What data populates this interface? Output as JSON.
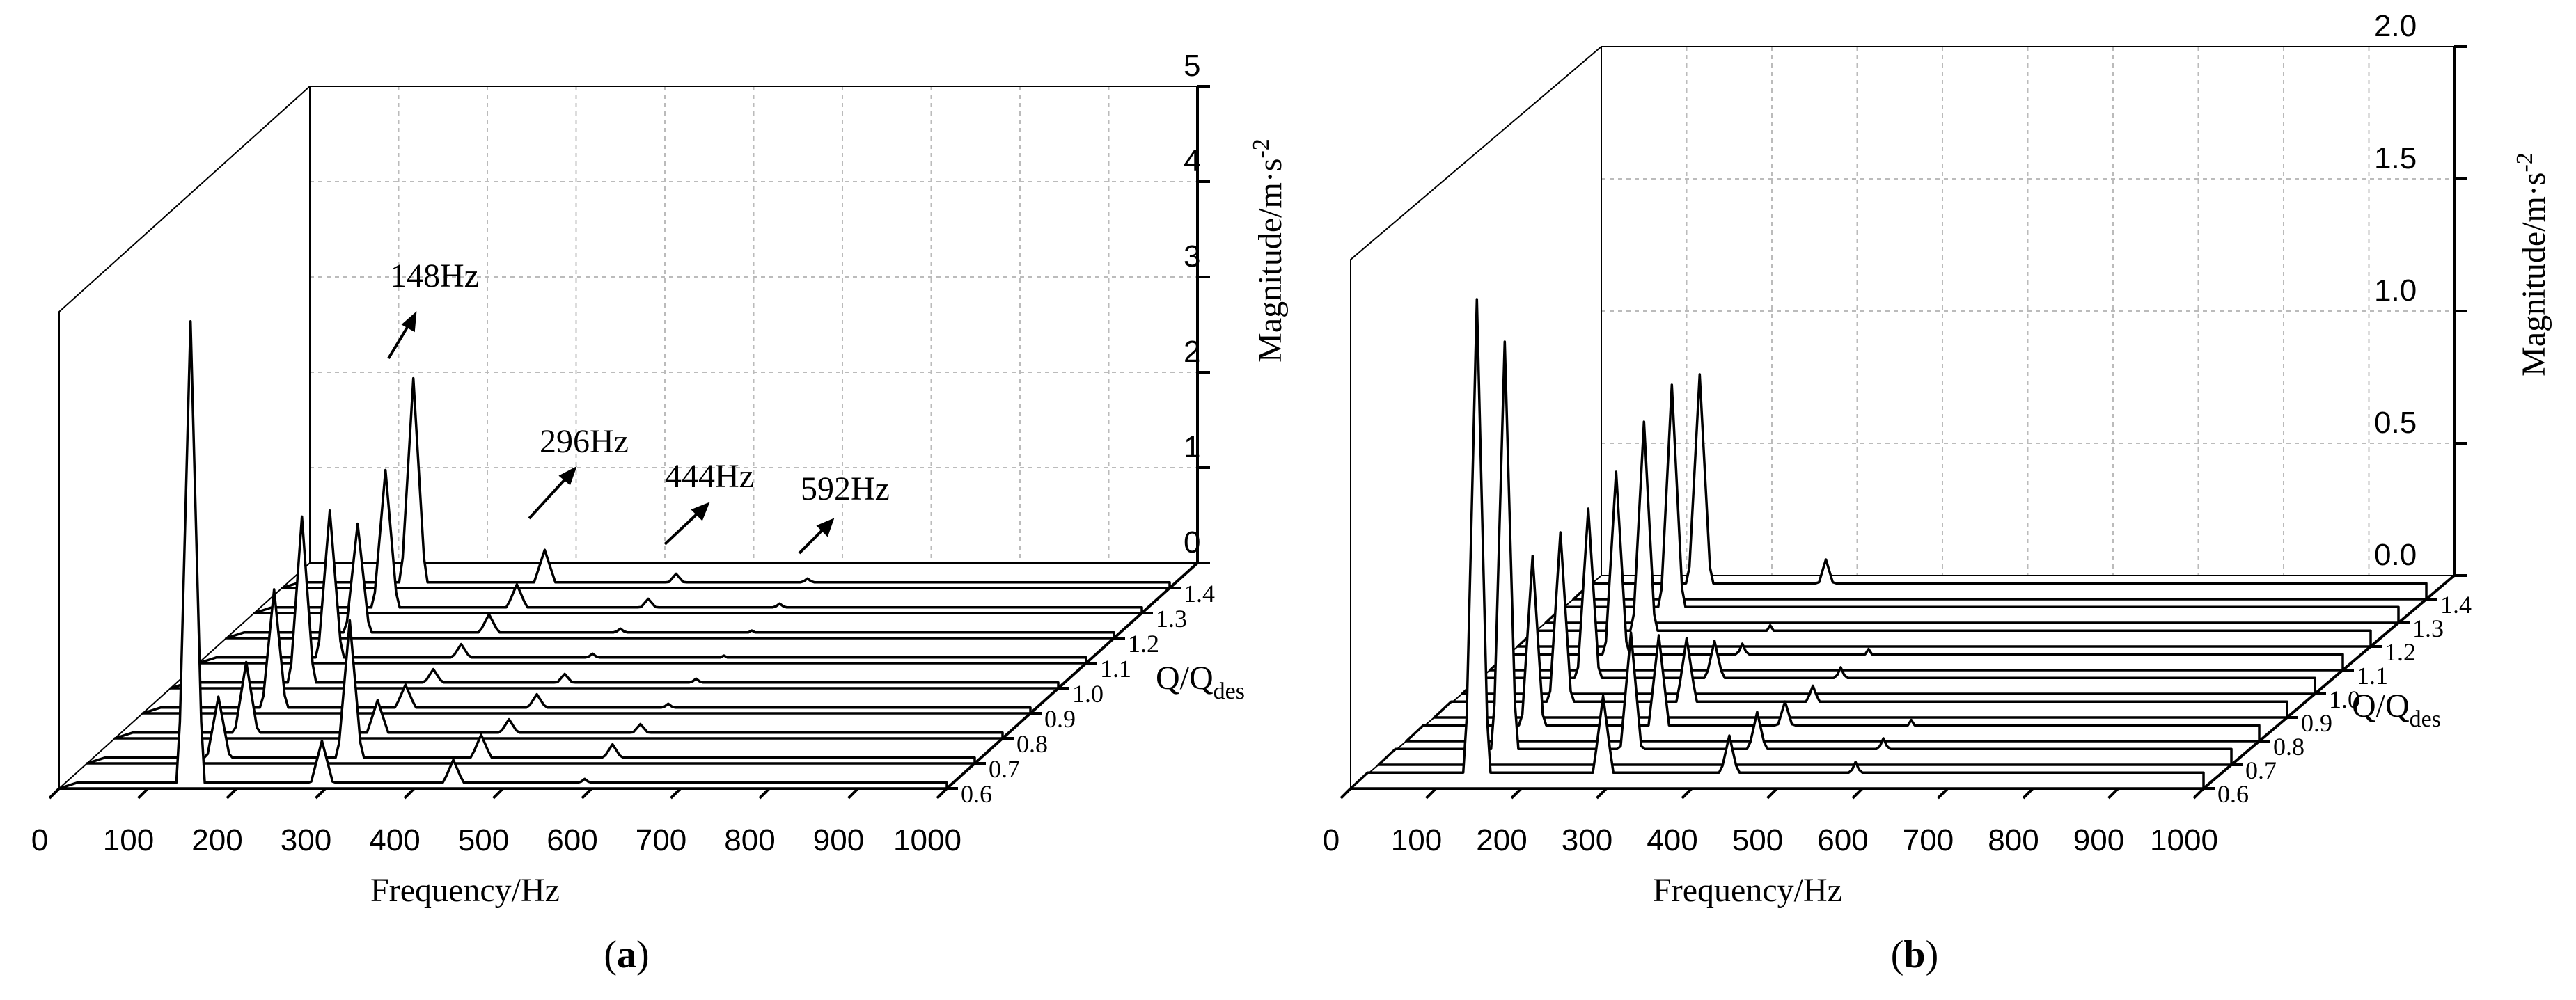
{
  "chart_data": [
    {
      "panel": "(a)",
      "type": "waterfall-line",
      "xlabel": "Frequency/Hz",
      "ylabel": "Magnitude/m·s",
      "ylabel_sup": "-2",
      "zlabel": "Q/Q",
      "zlabel_sub": "des",
      "x_ticks": [
        "0",
        "100",
        "200",
        "300",
        "400",
        "500",
        "600",
        "700",
        "800",
        "900",
        "1000"
      ],
      "xlim": [
        0,
        1000
      ],
      "y_ticks": [
        "0",
        "1",
        "2",
        "3",
        "4",
        "5"
      ],
      "ylim": [
        0,
        5
      ],
      "z_ticks": [
        "0.6",
        "0.7",
        "0.8",
        "0.9",
        "1.0",
        "1.1",
        "1.2",
        "1.3",
        "1.4"
      ],
      "annotations": [
        "148Hz",
        "296Hz",
        "444Hz",
        "592Hz"
      ],
      "peak_frequencies": [
        148,
        296,
        444,
        592
      ],
      "series": [
        {
          "name": "0.6",
          "values": [
            4.9,
            0.5,
            0.3,
            0.1
          ]
        },
        {
          "name": "0.7",
          "values": [
            0.7,
            1.5,
            0.3,
            0.2
          ]
        },
        {
          "name": "0.8",
          "values": [
            0.8,
            0.4,
            0.2,
            0.15
          ]
        },
        {
          "name": "0.9",
          "values": [
            1.3,
            0.3,
            0.2,
            0.1
          ]
        },
        {
          "name": "1.0",
          "values": [
            1.8,
            0.2,
            0.15,
            0.1
          ]
        },
        {
          "name": "1.1",
          "values": [
            1.6,
            0.2,
            0.1,
            0.08
          ]
        },
        {
          "name": "1.2",
          "values": [
            1.2,
            0.25,
            0.1,
            0.08
          ]
        },
        {
          "name": "1.3",
          "values": [
            1.5,
            0.3,
            0.15,
            0.1
          ]
        },
        {
          "name": "1.4",
          "values": [
            2.2,
            0.4,
            0.15,
            0.1
          ]
        }
      ]
    },
    {
      "panel": "(b)",
      "type": "waterfall-line",
      "xlabel": "Frequency/Hz",
      "ylabel": "Magnitude/m·s",
      "ylabel_sup": "-2",
      "zlabel": "Q/Q",
      "zlabel_sub": "des",
      "x_ticks": [
        "0",
        "100",
        "200",
        "300",
        "400",
        "500",
        "600",
        "700",
        "800",
        "900",
        "1000"
      ],
      "xlim": [
        0,
        1000
      ],
      "y_ticks": [
        "0.0",
        "0.5",
        "1.0",
        "1.5",
        "2.0"
      ],
      "ylim": [
        0,
        2
      ],
      "z_ticks": [
        "0.6",
        "0.7",
        "0.8",
        "0.9",
        "1.0",
        "1.1",
        "1.2",
        "1.3",
        "1.4"
      ],
      "peak_frequencies": [
        148,
        296,
        444,
        592
      ],
      "series": [
        {
          "name": "0.6",
          "values": [
            1.85,
            0.35,
            0.2,
            0.1
          ]
        },
        {
          "name": "0.7",
          "values": [
            1.6,
            0.5,
            0.2,
            0.1
          ]
        },
        {
          "name": "0.8",
          "values": [
            0.7,
            0.4,
            0.15,
            0.08
          ]
        },
        {
          "name": "0.9",
          "values": [
            0.7,
            0.3,
            0.12,
            0.06
          ]
        },
        {
          "name": "1.0",
          "values": [
            0.7,
            0.2,
            0.1,
            0.06
          ]
        },
        {
          "name": "1.1",
          "values": [
            0.75,
            0.1,
            0.08,
            0.05
          ]
        },
        {
          "name": "1.2",
          "values": [
            0.85,
            0.08,
            0.05,
            0.04
          ]
        },
        {
          "name": "1.3",
          "values": [
            0.9,
            0.06,
            0.04,
            0.03
          ]
        },
        {
          "name": "1.4",
          "values": [
            0.85,
            0.15,
            0.06,
            0.04
          ]
        }
      ]
    }
  ]
}
